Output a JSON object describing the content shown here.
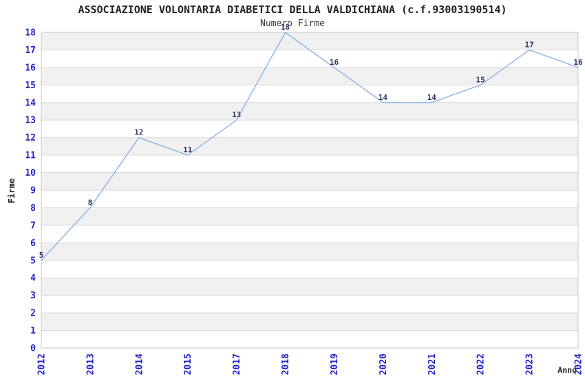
{
  "chart_data": {
    "type": "line",
    "title": "ASSOCIAZIONE VOLONTARIA DIABETICI DELLA VALDICHIANA (c.f.93003190514)",
    "subtitle": "Numero Firme",
    "xlabel": "Anno",
    "ylabel": "Firme",
    "categories": [
      "2012",
      "2013",
      "2014",
      "2015",
      "2017",
      "2018",
      "2019",
      "2020",
      "2021",
      "2022",
      "2023",
      "2024"
    ],
    "values": [
      5,
      8,
      12,
      11,
      13,
      18,
      16,
      14,
      14,
      15,
      17,
      16
    ],
    "ylim": [
      0,
      18
    ],
    "y_tick_step": 1,
    "grid": true,
    "legend_position": "none",
    "data_labels_visible": true,
    "colors": {
      "line": "#8ab4e4",
      "tick_label": "#2222cc",
      "data_label": "#333366",
      "band_light": "#ffffff",
      "band_dark": "#f0f0f0",
      "gridline": "#d9d9d9",
      "plot_border": "#c6c6c6",
      "title_text": "#222222",
      "axis_title_text": "#222222",
      "background": "#ffffff"
    }
  }
}
